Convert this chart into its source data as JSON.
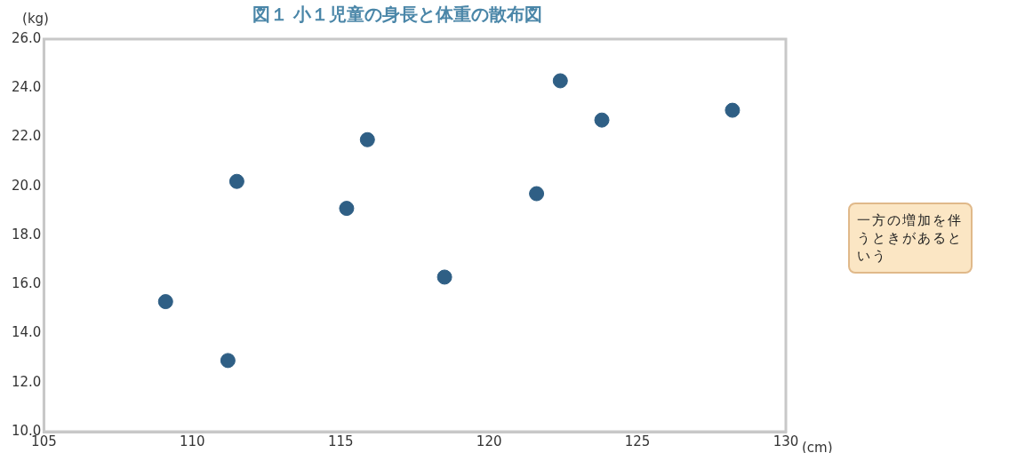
{
  "chart_data": {
    "type": "scatter",
    "title": "図１ 小１児童の身長と体重の散布図",
    "xlabel": "(cm)",
    "ylabel": "(kg)",
    "x": [
      109.1,
      111.2,
      111.5,
      115.2,
      115.9,
      118.5,
      121.6,
      122.4,
      123.8,
      128.2
    ],
    "values": [
      15.3,
      12.9,
      20.2,
      19.1,
      21.9,
      16.3,
      19.7,
      24.3,
      22.7,
      23.1
    ],
    "color": "#2f5f85",
    "marker": "circle",
    "grid": false,
    "legend": false,
    "xlim": [
      105,
      130
    ],
    "xticks": [
      105,
      110,
      115,
      120,
      125,
      130
    ],
    "ylim": [
      10,
      26
    ],
    "yticks": [
      {
        "value": 10,
        "label": "10.0"
      },
      {
        "value": 12,
        "label": "12.0"
      },
      {
        "value": 14,
        "label": "14.0"
      },
      {
        "value": 16,
        "label": "16.0"
      },
      {
        "value": 18,
        "label": "18.0"
      },
      {
        "value": 20,
        "label": "20.0"
      },
      {
        "value": 22,
        "label": "22.0"
      },
      {
        "value": 24,
        "label": "24.0"
      },
      {
        "value": 26,
        "label": "26.0"
      }
    ],
    "annotations": [
      "一方の増加を伴うときがあるという"
    ]
  }
}
